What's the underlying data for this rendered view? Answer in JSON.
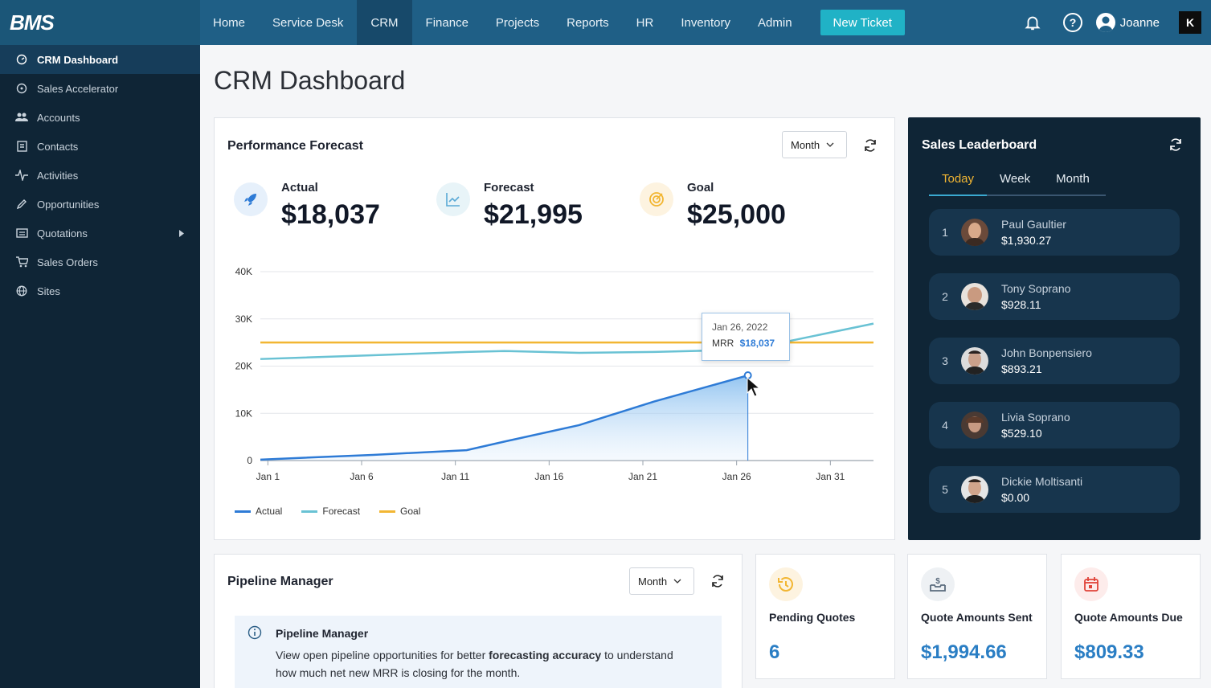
{
  "app": {
    "logo": "BMS"
  },
  "nav": {
    "items": [
      {
        "label": "Home"
      },
      {
        "label": "Service Desk"
      },
      {
        "label": "CRM"
      },
      {
        "label": "Finance"
      },
      {
        "label": "Projects"
      },
      {
        "label": "Reports"
      },
      {
        "label": "HR"
      },
      {
        "label": "Inventory"
      },
      {
        "label": "Admin"
      }
    ],
    "active": "CRM",
    "new_ticket": "New Ticket",
    "user": "Joanne",
    "brand_badge": "K"
  },
  "sidebar": {
    "items": [
      {
        "label": "CRM Dashboard",
        "icon": "dashboard-icon",
        "active": true
      },
      {
        "label": "Sales Accelerator",
        "icon": "accelerator-icon"
      },
      {
        "label": "Accounts",
        "icon": "accounts-icon"
      },
      {
        "label": "Contacts",
        "icon": "contacts-icon"
      },
      {
        "label": "Activities",
        "icon": "activity-icon"
      },
      {
        "label": "Opportunities",
        "icon": "pencil-icon"
      },
      {
        "label": "Quotations",
        "icon": "quotations-icon",
        "has_submenu": true
      },
      {
        "label": "Sales Orders",
        "icon": "cart-icon"
      },
      {
        "label": "Sites",
        "icon": "globe-icon"
      }
    ]
  },
  "page": {
    "title": "CRM Dashboard"
  },
  "forecast": {
    "title": "Performance Forecast",
    "period": "Month",
    "kpis": [
      {
        "label": "Actual",
        "value": "$18,037",
        "icon": "rocket-icon"
      },
      {
        "label": "Forecast",
        "value": "$21,995",
        "icon": "line-chart-icon"
      },
      {
        "label": "Goal",
        "value": "$25,000",
        "icon": "target-icon"
      }
    ],
    "tooltip": {
      "date": "Jan 26, 2022",
      "label": "MRR",
      "value": "$18,037"
    },
    "legend": [
      {
        "name": "Actual",
        "color": "#2e7bd6"
      },
      {
        "name": "Forecast",
        "color": "#69c2d4"
      },
      {
        "name": "Goal",
        "color": "#f2b633"
      }
    ]
  },
  "chart_data": {
    "type": "line",
    "x": [
      1,
      6,
      11,
      16,
      21,
      26,
      31
    ],
    "x_tick_labels": [
      "Jan 1",
      "Jan 6",
      "Jan 11",
      "Jan 16",
      "Jan 21",
      "Jan 26",
      "Jan 31"
    ],
    "y_tick_labels": [
      "0",
      "10K",
      "20K",
      "30K",
      "40K"
    ],
    "ylim": [
      0,
      40000
    ],
    "xlim": [
      1,
      32.7
    ],
    "series": [
      {
        "name": "Actual",
        "color": "#2e7bd6",
        "x": [
          0,
          6,
          11,
          13,
          17,
          21,
          26
        ],
        "y": [
          200,
          1200,
          2200,
          4000,
          7500,
          12500,
          18037
        ]
      },
      {
        "name": "Forecast",
        "color": "#69c2d4",
        "x": [
          0,
          6,
          11,
          13,
          17,
          21,
          26,
          32.7
        ],
        "y": [
          21500,
          22300,
          23000,
          23200,
          22800,
          23000,
          23500,
          29000
        ]
      },
      {
        "name": "Goal",
        "color": "#f2b633",
        "x": [
          0,
          32.7
        ],
        "y": [
          25000,
          25000
        ]
      }
    ]
  },
  "leaderboard": {
    "title": "Sales Leaderboard",
    "tabs": [
      "Today",
      "Week",
      "Month"
    ],
    "active_tab": "Today",
    "rows": [
      {
        "rank": "1",
        "name": "Paul Gaultier",
        "amount": "$1,930.27"
      },
      {
        "rank": "2",
        "name": "Tony Soprano",
        "amount": "$928.11"
      },
      {
        "rank": "3",
        "name": "John Bonpensiero",
        "amount": "$893.21"
      },
      {
        "rank": "4",
        "name": "Livia Soprano",
        "amount": "$529.10"
      },
      {
        "rank": "5",
        "name": "Dickie Moltisanti",
        "amount": "$0.00"
      }
    ]
  },
  "pipeline": {
    "title": "Pipeline Manager",
    "period": "Month",
    "info_title": "Pipeline Manager",
    "info_text_before": "View open pipeline opportunities for better ",
    "info_text_bold": "forecasting accuracy",
    "info_text_after": " to understand",
    "info_text_line2": "how much net new MRR is closing for the month."
  },
  "stats": [
    {
      "label": "Pending Quotes",
      "value": "6",
      "icon": "history-icon",
      "color": "#f2b633"
    },
    {
      "label": "Quote Amounts Sent",
      "value": "$1,994.66",
      "icon": "money-inbox-icon",
      "color": "#5a6b7d"
    },
    {
      "label": "Quote Amounts Due",
      "value": "$809.33",
      "icon": "calendar-icon",
      "color": "#e0443a"
    }
  ]
}
